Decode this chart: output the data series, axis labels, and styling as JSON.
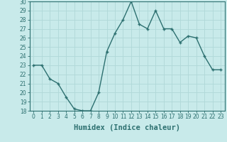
{
  "xlabel": "Humidex (Indice chaleur)",
  "x": [
    0,
    1,
    2,
    3,
    4,
    5,
    6,
    7,
    8,
    9,
    10,
    11,
    12,
    13,
    14,
    15,
    16,
    17,
    18,
    19,
    20,
    21,
    22,
    23
  ],
  "y": [
    23,
    23,
    21.5,
    21,
    19.5,
    18.2,
    18,
    18,
    20,
    24.5,
    26.5,
    28,
    30,
    27.5,
    27,
    29,
    27,
    27,
    25.5,
    26.2,
    26,
    24,
    22.5,
    22.5
  ],
  "line_color": "#2d7070",
  "marker_color": "#2d7070",
  "bg_color": "#c8eaea",
  "grid_color": "#b0d8d8",
  "ylim": [
    18,
    30
  ],
  "xlim": [
    -0.5,
    23.5
  ],
  "yticks": [
    18,
    19,
    20,
    21,
    22,
    23,
    24,
    25,
    26,
    27,
    28,
    29,
    30
  ],
  "xticks": [
    0,
    1,
    2,
    3,
    4,
    5,
    6,
    7,
    8,
    9,
    10,
    11,
    12,
    13,
    14,
    15,
    16,
    17,
    18,
    19,
    20,
    21,
    22,
    23
  ],
  "tick_label_fontsize": 5.5,
  "xlabel_fontsize": 7.5,
  "axis_color": "#2d7070",
  "linewidth": 1.0,
  "markersize": 3.5
}
